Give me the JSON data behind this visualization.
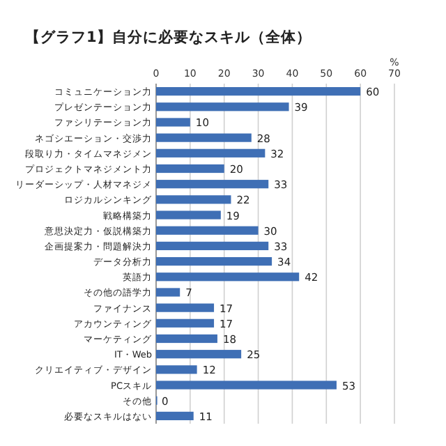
{
  "chart_data": {
    "type": "bar",
    "orientation": "horizontal",
    "title": "【グラフ1】自分に必要なスキル（全体）",
    "xlabel": "%",
    "categories": [
      "コミュニケーション力",
      "プレゼンテーション力",
      "ファシリテーション力",
      "ネゴシエーション・交渉力",
      "段取り力・タイムマネジメン",
      "プロジェクトマネジメント力",
      "リーダーシップ・人材マネジメ",
      "ロジカルシンキング",
      "戦略構築力",
      "意思決定力・仮説構築力",
      "企画提案力・問題解決力",
      "データ分析力",
      "英語力",
      "その他の語学力",
      "ファイナンス",
      "アカウンティング",
      "マーケティング",
      "IT・Web",
      "クリエイティブ・デザイン",
      "PCスキル",
      "その他",
      "必要なスキルはない"
    ],
    "values": [
      60,
      39,
      10,
      28,
      32,
      20,
      33,
      22,
      19,
      30,
      33,
      34,
      42,
      7,
      17,
      17,
      18,
      25,
      12,
      53,
      0,
      11
    ],
    "color": "#3f6fb5",
    "xlim": [
      0,
      70
    ],
    "xticks": [
      0,
      10,
      20,
      30,
      40,
      50,
      60,
      70
    ],
    "grid": "x",
    "data_labels": true
  }
}
